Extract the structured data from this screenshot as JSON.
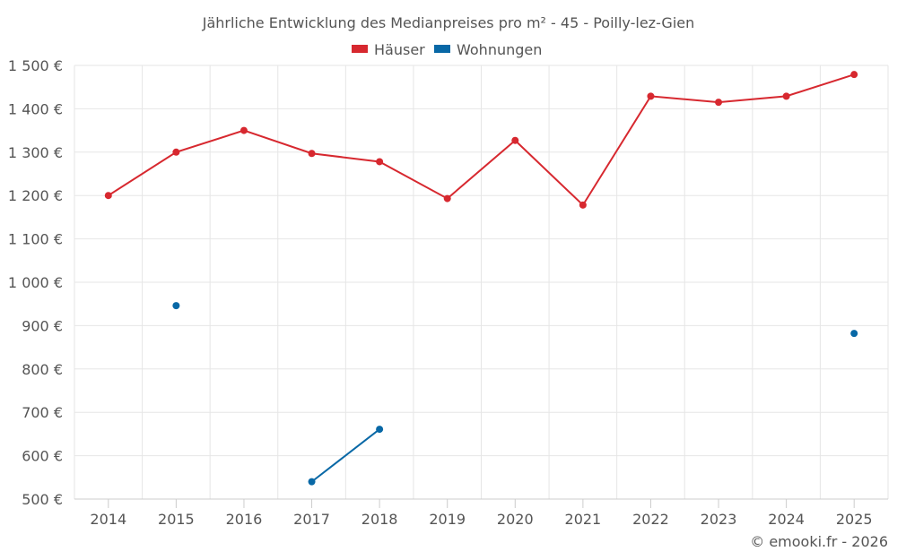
{
  "chart_data": {
    "type": "line",
    "title": "Jährliche Entwicklung des Medianpreises pro m² - 45 - Poilly-lez-Gien",
    "categories": [
      "2014",
      "2015",
      "2016",
      "2017",
      "2018",
      "2019",
      "2020",
      "2021",
      "2022",
      "2023",
      "2024",
      "2025"
    ],
    "series": [
      {
        "name": "Häuser",
        "color": "#d7282f",
        "values": [
          1200,
          1300,
          1350,
          1297,
          1278,
          1193,
          1327,
          1178,
          1429,
          1415,
          1429,
          1479
        ]
      },
      {
        "name": "Wohnungen",
        "color": "#0868a6",
        "values": [
          null,
          946,
          null,
          540,
          661,
          null,
          null,
          null,
          null,
          null,
          null,
          882
        ]
      }
    ],
    "ylim": [
      500,
      1500
    ],
    "yticks": [
      500,
      600,
      700,
      800,
      900,
      1000,
      1100,
      1200,
      1300,
      1400,
      1500
    ],
    "ytick_labels": [
      "500 €",
      "600 €",
      "700 €",
      "800 €",
      "900 €",
      "1 000 €",
      "1 100 €",
      "1 200 €",
      "1 300 €",
      "1 400 €",
      "1 500 €"
    ],
    "xlabel": "",
    "ylabel": "",
    "legend_position": "top-center",
    "grid": true
  },
  "credit": "© emooki.fr - 2026"
}
